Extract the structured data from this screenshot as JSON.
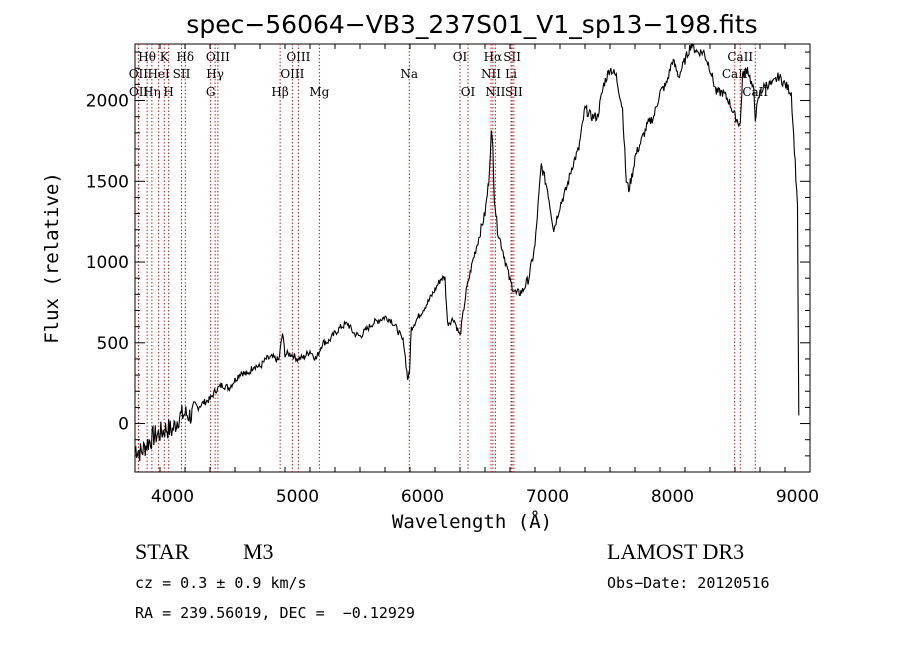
{
  "chart_data": {
    "type": "line",
    "title": "spec−56064−VB3_237S01_V1_sp13−198.fits",
    "xlabel": "Wavelength (Å)",
    "ylabel": "Flux (relative)",
    "xlim": [
      3700,
      9100
    ],
    "ylim": [
      -300,
      2350
    ],
    "xticks": [
      4000,
      5000,
      6000,
      7000,
      8000,
      9000
    ],
    "yticks": [
      0,
      500,
      1000,
      1500,
      2000
    ],
    "grid": false,
    "line_color": "#000000",
    "marker_color": "#b22222",
    "lines": [
      {
        "label": "Hθ",
        "wavelength": 3797,
        "row": 0
      },
      {
        "label": "OII",
        "wavelength": 3727,
        "row": 1
      },
      {
        "label": "OII",
        "wavelength": 3729,
        "row": 2
      },
      {
        "label": "Hη",
        "wavelength": 3835,
        "row": 2
      },
      {
        "label": "HeI",
        "wavelength": 3889,
        "row": 1
      },
      {
        "label": "K",
        "wavelength": 3934,
        "row": 0
      },
      {
        "label": "H",
        "wavelength": 3969,
        "row": 2
      },
      {
        "label": "SII",
        "wavelength": 4072,
        "row": 1
      },
      {
        "label": "Hδ",
        "wavelength": 4102,
        "row": 0
      },
      {
        "label": "G",
        "wavelength": 4305,
        "row": 2
      },
      {
        "label": "Hγ",
        "wavelength": 4341,
        "row": 1
      },
      {
        "label": "OIII",
        "wavelength": 4363,
        "row": 0
      },
      {
        "label": "Hβ",
        "wavelength": 4861,
        "row": 2
      },
      {
        "label": "OIII",
        "wavelength": 4959,
        "row": 1
      },
      {
        "label": "OIII",
        "wavelength": 5007,
        "row": 0
      },
      {
        "label": "Mg",
        "wavelength": 5175,
        "row": 2
      },
      {
        "label": "Na",
        "wavelength": 5894,
        "row": 1
      },
      {
        "label": "OI",
        "wavelength": 6300,
        "row": 0
      },
      {
        "label": "OI",
        "wavelength": 6364,
        "row": 2
      },
      {
        "label": "NII",
        "wavelength": 6548,
        "row": 1
      },
      {
        "label": "Hα",
        "wavelength": 6563,
        "row": 0
      },
      {
        "label": "NII",
        "wavelength": 6583,
        "row": 2
      },
      {
        "label": "SII",
        "wavelength": 6717,
        "row": 0
      },
      {
        "label": "Li",
        "wavelength": 6708,
        "row": 1
      },
      {
        "label": "SII",
        "wavelength": 6731,
        "row": 2
      },
      {
        "label": "CaII",
        "wavelength": 8498,
        "row": 1
      },
      {
        "label": "CaII",
        "wavelength": 8542,
        "row": 0
      },
      {
        "label": "CaII",
        "wavelength": 8662,
        "row": 2
      }
    ],
    "spectrum": {
      "x": [
        3700,
        3750,
        3800,
        3850,
        3900,
        3950,
        4000,
        4050,
        4100,
        4150,
        4200,
        4250,
        4300,
        4350,
        4400,
        4450,
        4500,
        4550,
        4600,
        4650,
        4700,
        4750,
        4800,
        4850,
        4880,
        4900,
        4950,
        5000,
        5050,
        5100,
        5150,
        5200,
        5250,
        5300,
        5350,
        5400,
        5450,
        5500,
        5550,
        5600,
        5650,
        5700,
        5750,
        5800,
        5850,
        5880,
        5895,
        5910,
        5950,
        6000,
        6050,
        6100,
        6150,
        6180,
        6200,
        6250,
        6300,
        6350,
        6400,
        6450,
        6500,
        6530,
        6550,
        6563,
        6575,
        6600,
        6650,
        6700,
        6750,
        6800,
        6850,
        6900,
        6950,
        7000,
        7050,
        7100,
        7150,
        7200,
        7250,
        7300,
        7350,
        7400,
        7450,
        7500,
        7550,
        7600,
        7630,
        7650,
        7680,
        7700,
        7750,
        7800,
        7850,
        7900,
        7950,
        8000,
        8050,
        8100,
        8150,
        8200,
        8250,
        8300,
        8350,
        8400,
        8450,
        8500,
        8542,
        8560,
        8600,
        8650,
        8662,
        8700,
        8750,
        8800,
        8850,
        8900,
        8950,
        9000,
        9010
      ],
      "y": [
        -150,
        -180,
        -120,
        -80,
        -60,
        -30,
        -40,
        40,
        60,
        50,
        100,
        130,
        150,
        210,
        240,
        220,
        270,
        320,
        300,
        360,
        350,
        400,
        410,
        390,
        560,
        430,
        430,
        400,
        410,
        450,
        400,
        500,
        510,
        560,
        600,
        620,
        560,
        540,
        580,
        620,
        640,
        660,
        640,
        580,
        500,
        280,
        300,
        590,
        640,
        700,
        760,
        830,
        900,
        900,
        620,
        650,
        540,
        820,
        1000,
        1150,
        1300,
        1500,
        1800,
        1700,
        1400,
        1200,
        1050,
        880,
        800,
        820,
        900,
        1100,
        1600,
        1450,
        1200,
        1350,
        1450,
        1600,
        1700,
        1950,
        1900,
        1900,
        2100,
        2200,
        2150,
        1950,
        1500,
        1450,
        1550,
        1650,
        1750,
        1850,
        1900,
        2050,
        2100,
        2250,
        2150,
        2250,
        2350,
        2300,
        2300,
        2200,
        2050,
        2050,
        2000,
        1900,
        1850,
        2150,
        2200,
        2050,
        1900,
        2050,
        2100,
        2100,
        2150,
        2100,
        2050,
        1350,
        50
      ]
    }
  },
  "info": {
    "object_class": "STAR",
    "subclass": "M3",
    "cz": "cz = 0.3 ± 0.9 km/s",
    "coords": "RA = 239.56019, DEC =  −0.12929",
    "survey": "LAMOST DR3",
    "obs_date": "Obs−Date: 20120516"
  }
}
